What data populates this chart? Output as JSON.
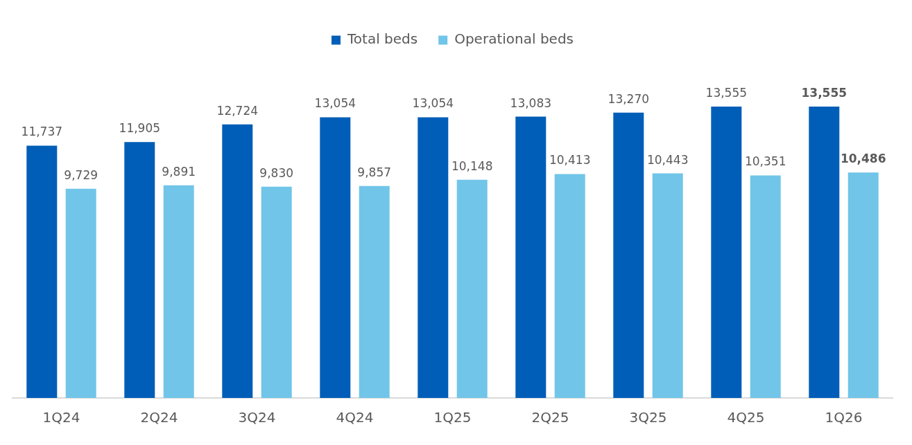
{
  "chart_data": {
    "type": "bar",
    "categories": [
      "1Q24",
      "2Q24",
      "3Q24",
      "4Q24",
      "1Q25",
      "2Q25",
      "3Q25",
      "4Q25",
      "1Q26"
    ],
    "series": [
      {
        "name": "Total beds",
        "color": "#005eb8",
        "values": [
          11737,
          11905,
          12724,
          13054,
          13054,
          13083,
          13270,
          13555,
          13555
        ],
        "value_labels": [
          "11,737",
          "11,905",
          "12,724",
          "13,054",
          "13,054",
          "13,083",
          "13,270",
          "13,555",
          "13,555"
        ]
      },
      {
        "name": "Operational beds",
        "color": "#71c5e8",
        "values": [
          9729,
          9891,
          9830,
          9857,
          10148,
          10413,
          10443,
          10351,
          10486
        ],
        "value_labels": [
          "9,729",
          "9,891",
          "9,830",
          "9,857",
          "10,148",
          "10,413",
          "10,443",
          "10,351",
          "10,486"
        ]
      }
    ],
    "legend": "top",
    "grid": false,
    "tick_labels": "x"
  }
}
